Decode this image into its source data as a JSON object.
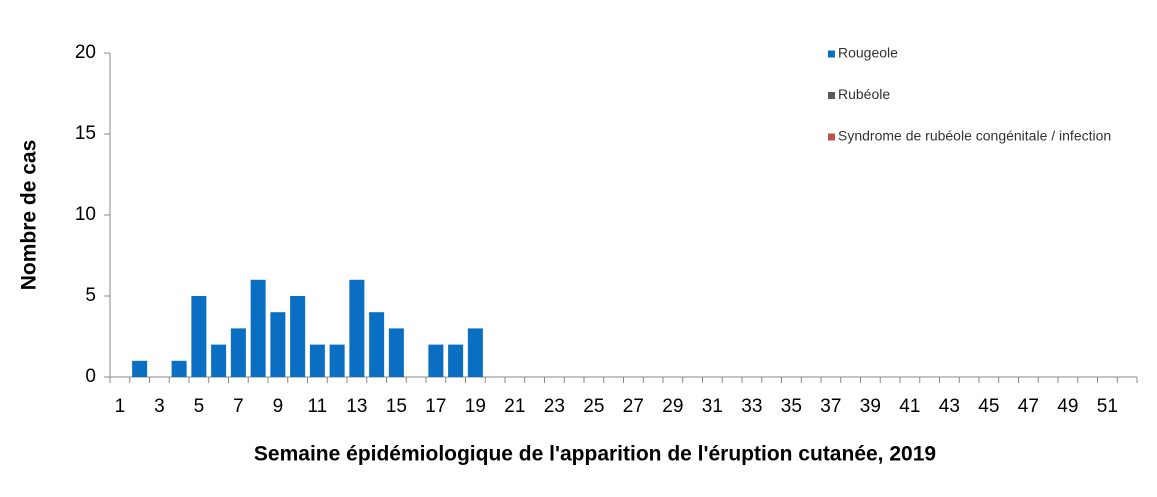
{
  "chart_data": {
    "type": "bar",
    "x_label": "Semaine épidémiologique de l'apparition de l'éruption cutanée, 2019",
    "y_label": "Nombre de cas",
    "categories": [
      "1",
      null,
      "3",
      null,
      "5",
      null,
      "7",
      null,
      "9",
      null,
      "11",
      null,
      "13",
      null,
      "15",
      null,
      "17",
      null,
      "19",
      null,
      "21",
      null,
      "23",
      null,
      "25",
      null,
      "27",
      null,
      "29",
      null,
      "31",
      null,
      "33",
      null,
      "35",
      null,
      "37",
      null,
      "39",
      null,
      "41",
      null,
      "43",
      null,
      "45",
      null,
      "47",
      null,
      "49",
      null,
      "51",
      null
    ],
    "series": [
      {
        "name": "Rougeole",
        "color": "#0a6ec2",
        "values": [
          0,
          1,
          0,
          1,
          5,
          2,
          3,
          6,
          4,
          5,
          2,
          2,
          6,
          4,
          3,
          0,
          2,
          2,
          3,
          0,
          0,
          0,
          0,
          0,
          0,
          0,
          0,
          0,
          0,
          0,
          0,
          0,
          0,
          0,
          0,
          0,
          0,
          0,
          0,
          0,
          0,
          0,
          0,
          0,
          0,
          0,
          0,
          0,
          0,
          0,
          0,
          0
        ]
      },
      {
        "name": "Rubéole",
        "color": "#595959",
        "values": [
          0,
          0,
          0,
          0,
          0,
          0,
          0,
          0,
          0,
          0,
          0,
          0,
          0,
          0,
          0,
          0,
          0,
          0,
          0,
          0,
          0,
          0,
          0,
          0,
          0,
          0,
          0,
          0,
          0,
          0,
          0,
          0,
          0,
          0,
          0,
          0,
          0,
          0,
          0,
          0,
          0,
          0,
          0,
          0,
          0,
          0,
          0,
          0,
          0,
          0,
          0,
          0
        ]
      },
      {
        "name": "Syndrome de rubéole congénitale / infection",
        "color": "#c0504d",
        "values": [
          0,
          0,
          0,
          0,
          0,
          0,
          0,
          0,
          0,
          0,
          0,
          0,
          0,
          0,
          0,
          0,
          0,
          0,
          0,
          0,
          0,
          0,
          0,
          0,
          0,
          0,
          0,
          0,
          0,
          0,
          0,
          0,
          0,
          0,
          0,
          0,
          0,
          0,
          0,
          0,
          0,
          0,
          0,
          0,
          0,
          0,
          0,
          0,
          0,
          0,
          0,
          0
        ]
      }
    ],
    "stacked": true,
    "ylim": [
      0,
      20
    ],
    "yticks": [
      0,
      5,
      10,
      15,
      20
    ],
    "grid": false
  }
}
